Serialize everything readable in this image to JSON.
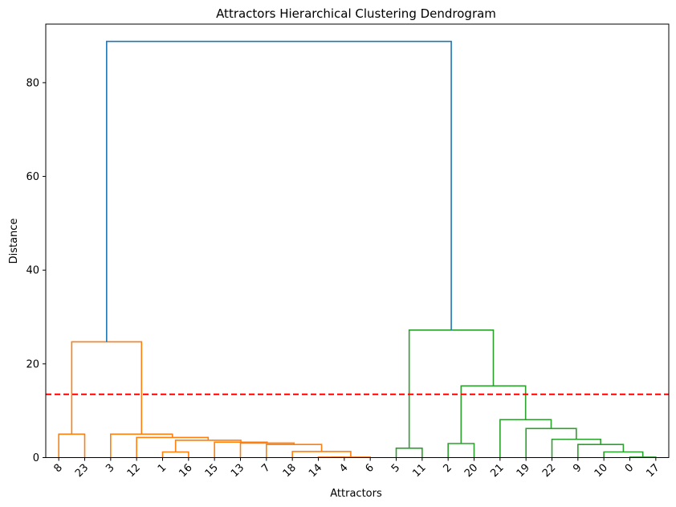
{
  "chart_data": {
    "type": "dendrogram",
    "title": "Attractors Hierarchical Clustering Dendrogram",
    "xlabel": "Attractors",
    "ylabel": "Distance",
    "ylim": [
      0,
      92.5
    ],
    "yticks": [
      0,
      20,
      40,
      60,
      80
    ],
    "leaves": [
      "8",
      "23",
      "3",
      "12",
      "1",
      "16",
      "15",
      "13",
      "7",
      "18",
      "14",
      "4",
      "6",
      "5",
      "11",
      "2",
      "20",
      "21",
      "19",
      "22",
      "9",
      "10",
      "0",
      "17"
    ],
    "threshold": 13.5,
    "colors": {
      "cluster_1": "#ff7f0e",
      "cluster_2": "#2ca02c",
      "above_threshold": "#1f77b4",
      "threshold_line": "#ff0000",
      "axes": "#000000"
    },
    "links": [
      {
        "a": [
          0
        ],
        "b": [
          1
        ],
        "height": 5.0,
        "color": "cluster_1"
      },
      {
        "a": [
          10
        ],
        "b": [
          11
        ],
        "height": 0.1,
        "color": "cluster_1"
      },
      {
        "a": [
          10,
          11
        ],
        "b": [
          12
        ],
        "height": 0.1,
        "color": "cluster_1"
      },
      {
        "a": [
          9
        ],
        "b": [
          10,
          11,
          12
        ],
        "height": 1.3,
        "color": "cluster_1"
      },
      {
        "a": [
          8
        ],
        "b": [
          9,
          10,
          11,
          12
        ],
        "height": 2.8,
        "color": "cluster_1"
      },
      {
        "a": [
          7
        ],
        "b": [
          8,
          9,
          10,
          11,
          12
        ],
        "height": 3.1,
        "color": "cluster_1"
      },
      {
        "a": [
          6
        ],
        "b": [
          7,
          8,
          9,
          10,
          11,
          12
        ],
        "height": 3.3,
        "color": "cluster_1"
      },
      {
        "a": [
          4
        ],
        "b": [
          5
        ],
        "height": 1.2,
        "color": "cluster_1"
      },
      {
        "a": [
          4,
          5
        ],
        "b": [
          6,
          7,
          8,
          9,
          10,
          11,
          12
        ],
        "height": 3.7,
        "color": "cluster_1"
      },
      {
        "a": [
          3
        ],
        "b": [
          4,
          5,
          6,
          7,
          8,
          9,
          10,
          11,
          12
        ],
        "height": 4.3,
        "color": "cluster_1"
      },
      {
        "a": [
          2
        ],
        "b": [
          3,
          4,
          5,
          6,
          7,
          8,
          9,
          10,
          11,
          12
        ],
        "height": 5.0,
        "color": "cluster_1"
      },
      {
        "a": [
          0,
          1
        ],
        "b": [
          2,
          3,
          4,
          5,
          6,
          7,
          8,
          9,
          10,
          11,
          12
        ],
        "height": 24.7,
        "color": "cluster_1"
      },
      {
        "a": [
          13
        ],
        "b": [
          14
        ],
        "height": 2.0,
        "color": "cluster_2"
      },
      {
        "a": [
          15
        ],
        "b": [
          16
        ],
        "height": 3.0,
        "color": "cluster_2"
      },
      {
        "a": [
          22
        ],
        "b": [
          23
        ],
        "height": 0.1,
        "color": "cluster_2"
      },
      {
        "a": [
          21
        ],
        "b": [
          22,
          23
        ],
        "height": 1.2,
        "color": "cluster_2"
      },
      {
        "a": [
          20
        ],
        "b": [
          21,
          22,
          23
        ],
        "height": 2.8,
        "color": "cluster_2"
      },
      {
        "a": [
          19
        ],
        "b": [
          20,
          21,
          22,
          23
        ],
        "height": 3.9,
        "color": "cluster_2"
      },
      {
        "a": [
          18
        ],
        "b": [
          19,
          20,
          21,
          22,
          23
        ],
        "height": 6.2,
        "color": "cluster_2"
      },
      {
        "a": [
          17
        ],
        "b": [
          18,
          19,
          20,
          21,
          22,
          23
        ],
        "height": 8.1,
        "color": "cluster_2"
      },
      {
        "a": [
          15,
          16
        ],
        "b": [
          17,
          18,
          19,
          20,
          21,
          22,
          23
        ],
        "height": 15.3,
        "color": "cluster_2"
      },
      {
        "a": [
          13,
          14
        ],
        "b": [
          15,
          16,
          17,
          18,
          19,
          20,
          21,
          22,
          23
        ],
        "height": 27.2,
        "color": "cluster_2"
      },
      {
        "a": [
          0,
          1,
          2,
          3,
          4,
          5,
          6,
          7,
          8,
          9,
          10,
          11,
          12
        ],
        "b": [
          13,
          14,
          15,
          16,
          17,
          18,
          19,
          20,
          21,
          22,
          23
        ],
        "height": 88.8,
        "color": "above_threshold"
      }
    ]
  }
}
